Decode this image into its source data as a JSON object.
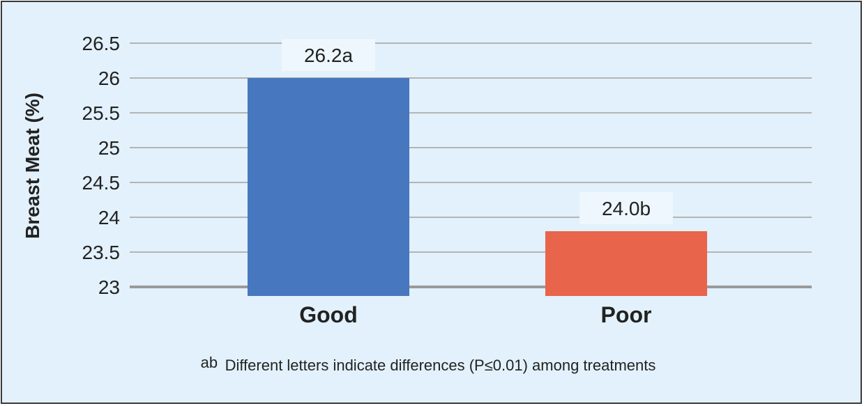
{
  "chart_data": {
    "type": "bar",
    "categories": [
      "Good",
      "Poor"
    ],
    "values": [
      26.2,
      24.0
    ],
    "data_labels": [
      "26.2a",
      "24.0b"
    ],
    "colors": [
      "#4777bf",
      "#e8644a"
    ],
    "xlabel": "",
    "ylabel": "Breast Meat (%)",
    "ylim": [
      23,
      26.5
    ],
    "yticks": [
      23,
      23.5,
      24,
      24.5,
      25,
      25.5,
      26,
      26.5
    ],
    "ytick_labels": [
      "23",
      "23.5",
      "24",
      "24.5",
      "25",
      "25.5",
      "26",
      "26.5"
    ],
    "grid": true,
    "legend": "none"
  },
  "footnote": {
    "superscript": "ab",
    "text": "Different letters indicate differences (P≤0.01) among treatments"
  }
}
